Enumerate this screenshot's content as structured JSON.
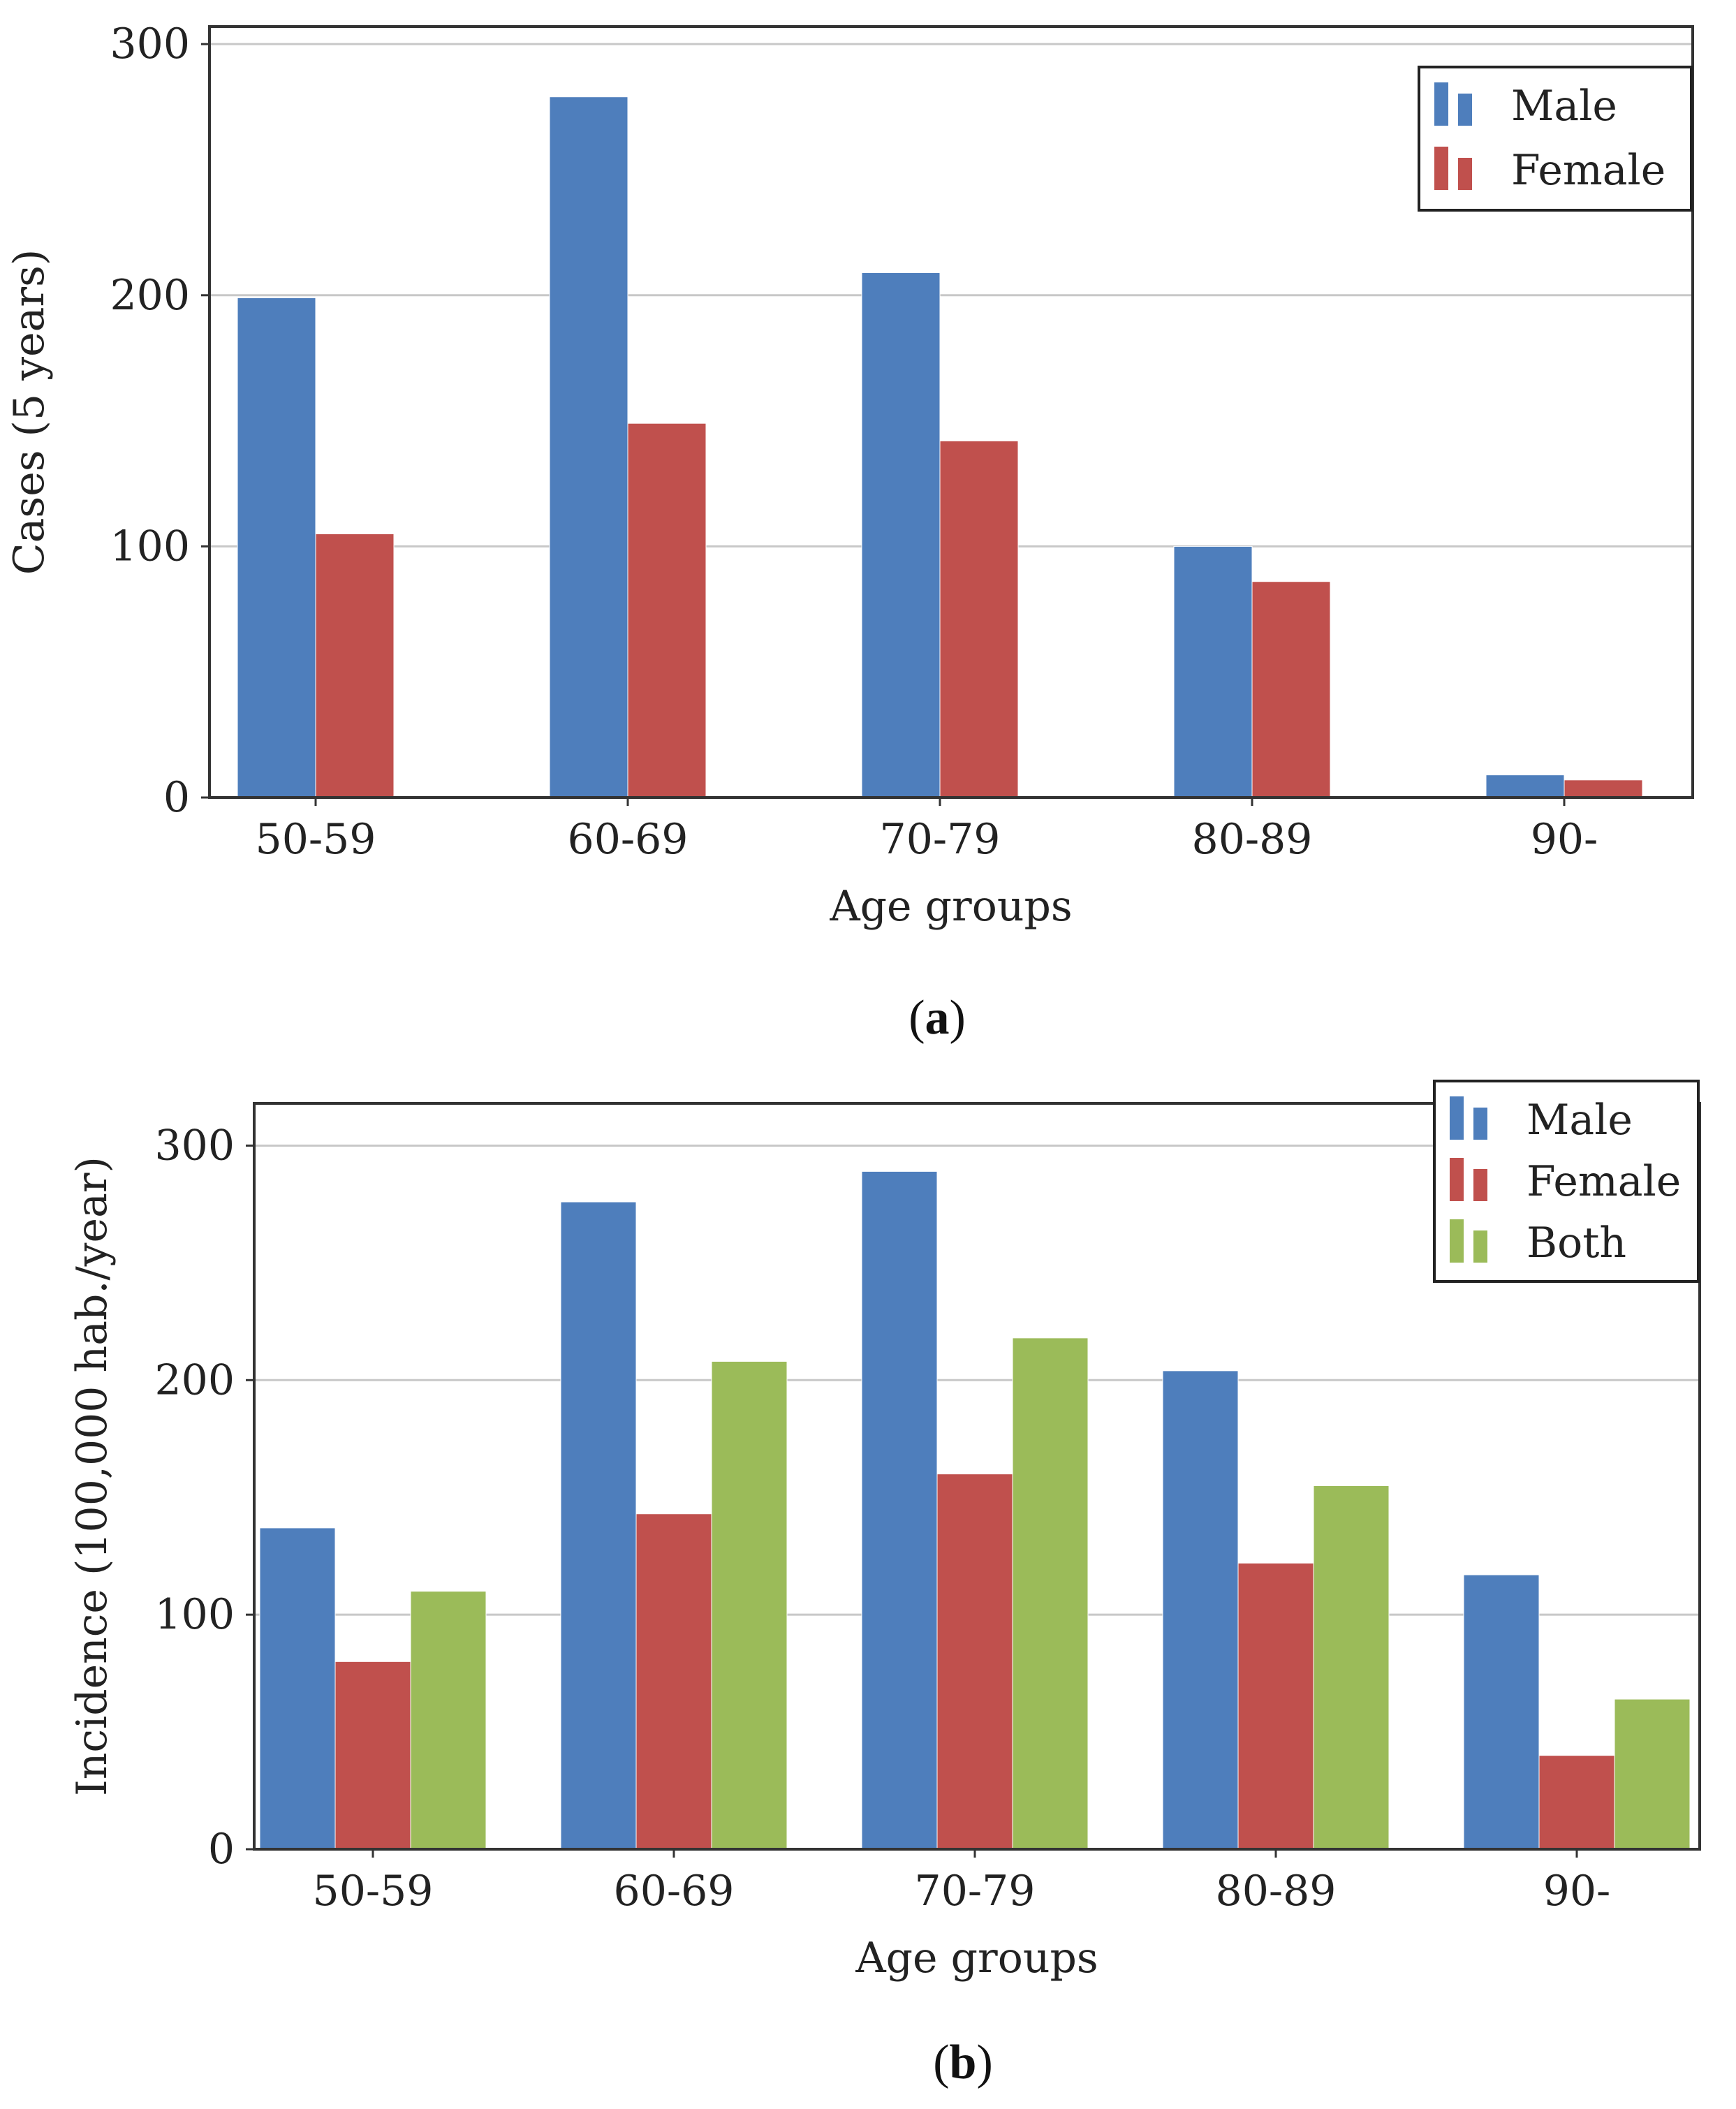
{
  "colors": {
    "male": "#4E7EBC",
    "female": "#C0504D",
    "both": "#9BBB59",
    "grid": "#C8C8C8",
    "axis": "#333333"
  },
  "chart_data": [
    {
      "type": "bar",
      "caption_letter": "a",
      "caption_open": "(",
      "caption_close": ")",
      "categories": [
        "50-59",
        "60-69",
        "70-79",
        "80-89",
        "90-"
      ],
      "series": [
        {
          "name": "Male",
          "color_key": "male",
          "values": [
            199,
            279,
            209,
            100,
            9
          ]
        },
        {
          "name": "Female",
          "color_key": "female",
          "values": [
            105,
            149,
            142,
            86,
            7
          ]
        }
      ],
      "xlabel": "Age groups",
      "ylabel": "Cases (5 years)",
      "ylim": [
        0,
        307
      ],
      "yticks": [
        "0",
        "100",
        "200",
        "300"
      ],
      "grid": true,
      "legend_position": "top-right"
    },
    {
      "type": "bar",
      "caption_letter": "b",
      "caption_open": "(",
      "caption_close": ")",
      "categories": [
        "50-59",
        "60-69",
        "70-79",
        "80-89",
        "90-"
      ],
      "series": [
        {
          "name": "Male",
          "color_key": "male",
          "values": [
            137,
            276,
            289,
            204,
            117
          ]
        },
        {
          "name": "Female",
          "color_key": "female",
          "values": [
            80,
            143,
            160,
            122,
            40
          ]
        },
        {
          "name": "Both",
          "color_key": "both",
          "values": [
            110,
            208,
            218,
            155,
            64
          ]
        }
      ],
      "xlabel": "Age groups",
      "ylabel": "Incidence (100,000 hab./year)",
      "ylim": [
        0,
        318
      ],
      "yticks": [
        "0",
        "100",
        "200",
        "300"
      ],
      "grid": true,
      "legend_position": "top-right"
    }
  ]
}
